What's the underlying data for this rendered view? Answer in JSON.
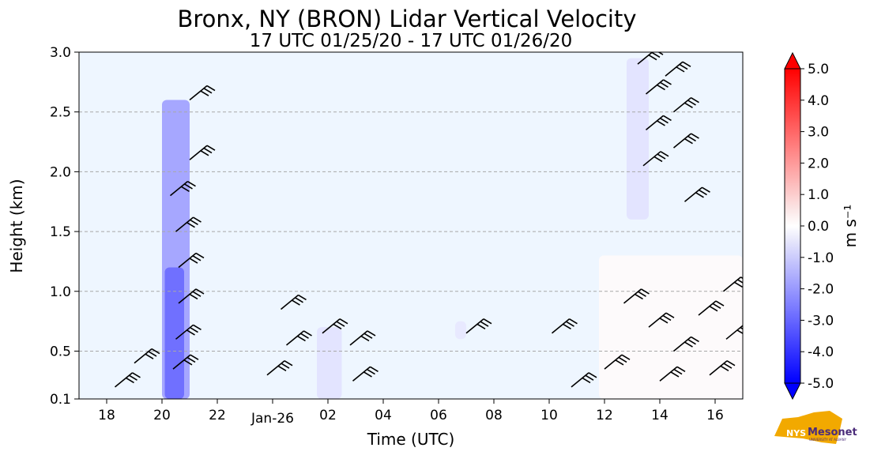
{
  "title": "Bronx, NY (BRON) Lidar Vertical Velocity",
  "subtitle": "17 UTC 01/25/20 - 17 UTC 01/26/20",
  "logo": {
    "text": "Mesonet",
    "badge": "NYS",
    "sub": "UNIVERSITY AT ALBANY"
  },
  "chart_data": {
    "type": "heatmap",
    "title": "Bronx, NY (BRON) Lidar Vertical Velocity",
    "subtitle": "17 UTC 01/25/20 - 17 UTC 01/26/20",
    "xlabel": "Time (UTC)",
    "ylabel": "Height (km)",
    "xlim": [
      17,
      41
    ],
    "ylim": [
      0.1,
      3.0
    ],
    "x_ticks": [
      {
        "v": 18,
        "label": "18"
      },
      {
        "v": 20,
        "label": "20"
      },
      {
        "v": 22,
        "label": "22"
      },
      {
        "v": 24,
        "label": "Jan-26"
      },
      {
        "v": 26,
        "label": "02"
      },
      {
        "v": 28,
        "label": "04"
      },
      {
        "v": 30,
        "label": "06"
      },
      {
        "v": 32,
        "label": "08"
      },
      {
        "v": 34,
        "label": "10"
      },
      {
        "v": 36,
        "label": "12"
      },
      {
        "v": 38,
        "label": "14"
      },
      {
        "v": 40,
        "label": "16"
      }
    ],
    "y_ticks": [
      {
        "v": 0.1,
        "label": "0.1"
      },
      {
        "v": 0.5,
        "label": "0.5"
      },
      {
        "v": 1.0,
        "label": "1.0"
      },
      {
        "v": 1.5,
        "label": "1.5"
      },
      {
        "v": 2.0,
        "label": "2.0"
      },
      {
        "v": 2.5,
        "label": "2.5"
      },
      {
        "v": 3.0,
        "label": "3.0"
      }
    ],
    "grid": "horizontal dashed",
    "background_color": "#eef6ff",
    "colorbar": {
      "label": "m s⁻¹",
      "range": [
        -5.0,
        5.0
      ],
      "ticks": [
        "5.0",
        "4.0",
        "3.0",
        "2.0",
        "1.0",
        "0.0",
        "-1.0",
        "-2.0",
        "-3.0",
        "-4.0",
        "-5.0"
      ],
      "colormap": "bwr",
      "extend": "both"
    },
    "regions": [
      {
        "name": "vertical plume",
        "x": [
          20.0,
          21.0
        ],
        "y": [
          0.1,
          2.6
        ],
        "value": -2.0
      },
      {
        "name": "plume core",
        "x": [
          20.1,
          20.8
        ],
        "y": [
          0.1,
          1.2
        ],
        "value": -3.0
      },
      {
        "name": "boundary layer patch",
        "x": [
          25.6,
          26.5
        ],
        "y": [
          0.1,
          0.7
        ],
        "value": -0.6
      },
      {
        "name": "small patch",
        "x": [
          30.6,
          31.0
        ],
        "y": [
          0.6,
          0.75
        ],
        "value": -0.5
      },
      {
        "name": "upper cloud layer",
        "x": [
          36.8,
          37.6
        ],
        "y": [
          1.6,
          2.95
        ],
        "value": -0.6
      },
      {
        "name": "morning mixed layer",
        "x": [
          35.8,
          41.0
        ],
        "y": [
          0.1,
          1.3
        ],
        "value": 0.1
      }
    ],
    "wind_barbs": [
      {
        "x": 21.0,
        "y": 2.6
      },
      {
        "x": 21.0,
        "y": 2.1
      },
      {
        "x": 20.3,
        "y": 1.8
      },
      {
        "x": 20.5,
        "y": 1.5
      },
      {
        "x": 20.6,
        "y": 1.2
      },
      {
        "x": 20.6,
        "y": 0.9
      },
      {
        "x": 20.5,
        "y": 0.6
      },
      {
        "x": 20.4,
        "y": 0.35
      },
      {
        "x": 24.3,
        "y": 0.85
      },
      {
        "x": 24.5,
        "y": 0.55
      },
      {
        "x": 23.8,
        "y": 0.3
      },
      {
        "x": 25.8,
        "y": 0.65
      },
      {
        "x": 26.8,
        "y": 0.55
      },
      {
        "x": 26.9,
        "y": 0.25
      },
      {
        "x": 31.0,
        "y": 0.65
      },
      {
        "x": 34.1,
        "y": 0.65
      },
      {
        "x": 37.2,
        "y": 2.9
      },
      {
        "x": 37.5,
        "y": 2.65
      },
      {
        "x": 37.5,
        "y": 2.35
      },
      {
        "x": 37.4,
        "y": 2.05
      },
      {
        "x": 38.2,
        "y": 2.8
      },
      {
        "x": 38.5,
        "y": 2.5
      },
      {
        "x": 38.5,
        "y": 2.2
      },
      {
        "x": 38.9,
        "y": 1.75
      },
      {
        "x": 36.7,
        "y": 0.9
      },
      {
        "x": 37.6,
        "y": 0.7
      },
      {
        "x": 38.5,
        "y": 0.5
      },
      {
        "x": 39.4,
        "y": 0.8
      },
      {
        "x": 40.3,
        "y": 1.0
      },
      {
        "x": 40.4,
        "y": 0.6
      },
      {
        "x": 36.0,
        "y": 0.35
      },
      {
        "x": 38.0,
        "y": 0.25
      },
      {
        "x": 39.8,
        "y": 0.3
      },
      {
        "x": 34.8,
        "y": 0.2
      },
      {
        "x": 19.0,
        "y": 0.4
      },
      {
        "x": 18.3,
        "y": 0.2
      }
    ]
  }
}
